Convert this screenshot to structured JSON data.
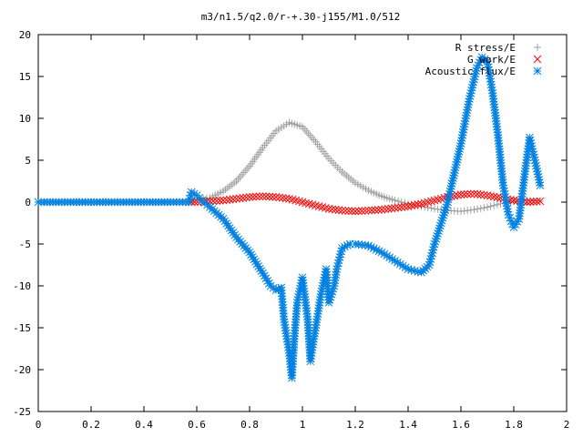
{
  "chart_data": {
    "type": "scatter",
    "title": "m3/n1.5/q2.0/r-+.30-j155/M1.0/512",
    "xlabel": "",
    "ylabel": "",
    "xlim": [
      0,
      2
    ],
    "ylim": [
      -25,
      20
    ],
    "x_ticks": [
      "0",
      "0.2",
      "0.4",
      "0.6",
      "0.8",
      "1",
      "1.2",
      "1.4",
      "1.6",
      "1.8",
      "2"
    ],
    "y_ticks": [
      "20",
      "15",
      "10",
      "5",
      "0",
      "-5",
      "-10",
      "-15",
      "-20",
      "-25"
    ],
    "grid": false,
    "legend_position": "top-right",
    "series": [
      {
        "name": "R stress/E",
        "marker": "+",
        "color": "#a0a0a0",
        "points": [
          [
            0.58,
            0.2
          ],
          [
            0.6,
            0.3
          ],
          [
            0.65,
            0.5
          ],
          [
            0.7,
            1.3
          ],
          [
            0.75,
            2.5
          ],
          [
            0.8,
            4.3
          ],
          [
            0.85,
            6.5
          ],
          [
            0.9,
            8.5
          ],
          [
            0.95,
            9.5
          ],
          [
            1.0,
            9.0
          ],
          [
            1.05,
            7.2
          ],
          [
            1.1,
            5.2
          ],
          [
            1.15,
            3.6
          ],
          [
            1.2,
            2.3
          ],
          [
            1.25,
            1.4
          ],
          [
            1.3,
            0.7
          ],
          [
            1.35,
            0.2
          ],
          [
            1.4,
            -0.2
          ],
          [
            1.45,
            -0.5
          ],
          [
            1.5,
            -0.8
          ],
          [
            1.55,
            -1.0
          ],
          [
            1.6,
            -1.1
          ],
          [
            1.65,
            -0.9
          ],
          [
            1.7,
            -0.6
          ],
          [
            1.75,
            -0.2
          ],
          [
            1.8,
            0.1
          ],
          [
            1.85,
            0.2
          ],
          [
            1.9,
            0.1
          ]
        ]
      },
      {
        "name": "G work/E",
        "marker": "x",
        "color": "#ff0000",
        "points": [
          [
            0.58,
            0.0
          ],
          [
            0.65,
            0.1
          ],
          [
            0.7,
            0.2
          ],
          [
            0.75,
            0.4
          ],
          [
            0.8,
            0.6
          ],
          [
            0.85,
            0.7
          ],
          [
            0.9,
            0.6
          ],
          [
            0.95,
            0.4
          ],
          [
            1.0,
            0.0
          ],
          [
            1.05,
            -0.4
          ],
          [
            1.1,
            -0.8
          ],
          [
            1.15,
            -1.0
          ],
          [
            1.2,
            -1.1
          ],
          [
            1.25,
            -1.0
          ],
          [
            1.3,
            -0.9
          ],
          [
            1.35,
            -0.7
          ],
          [
            1.4,
            -0.5
          ],
          [
            1.45,
            -0.2
          ],
          [
            1.5,
            0.2
          ],
          [
            1.55,
            0.6
          ],
          [
            1.6,
            0.9
          ],
          [
            1.65,
            1.0
          ],
          [
            1.7,
            0.8
          ],
          [
            1.75,
            0.5
          ],
          [
            1.8,
            0.2
          ],
          [
            1.85,
            0.0
          ],
          [
            1.9,
            0.1
          ]
        ]
      },
      {
        "name": "Acoustic flux/E",
        "marker": "*",
        "color": "#0080e0",
        "points": [
          [
            0.0,
            0.0
          ],
          [
            0.1,
            0.0
          ],
          [
            0.2,
            0.0
          ],
          [
            0.3,
            0.0
          ],
          [
            0.4,
            0.0
          ],
          [
            0.5,
            0.0
          ],
          [
            0.57,
            0.0
          ],
          [
            0.58,
            1.2
          ],
          [
            0.6,
            0.8
          ],
          [
            0.62,
            0.2
          ],
          [
            0.65,
            -0.6
          ],
          [
            0.7,
            -2.0
          ],
          [
            0.75,
            -4.2
          ],
          [
            0.8,
            -6.0
          ],
          [
            0.85,
            -8.5
          ],
          [
            0.88,
            -10.0
          ],
          [
            0.9,
            -10.5
          ],
          [
            0.92,
            -10.2
          ],
          [
            0.93,
            -14.0
          ],
          [
            0.95,
            -18.0
          ],
          [
            0.96,
            -21.0
          ],
          [
            0.97,
            -16.0
          ],
          [
            0.98,
            -12.0
          ],
          [
            1.0,
            -9.0
          ],
          [
            1.02,
            -14.0
          ],
          [
            1.03,
            -19.0
          ],
          [
            1.05,
            -15.0
          ],
          [
            1.07,
            -11.0
          ],
          [
            1.09,
            -8.0
          ],
          [
            1.1,
            -12.0
          ],
          [
            1.12,
            -10.0
          ],
          [
            1.13,
            -8.0
          ],
          [
            1.15,
            -5.5
          ],
          [
            1.18,
            -5.0
          ],
          [
            1.2,
            -5.0
          ],
          [
            1.25,
            -5.2
          ],
          [
            1.3,
            -6.0
          ],
          [
            1.35,
            -7.0
          ],
          [
            1.4,
            -8.0
          ],
          [
            1.45,
            -8.4
          ],
          [
            1.48,
            -7.5
          ],
          [
            1.5,
            -5.0
          ],
          [
            1.55,
            0.0
          ],
          [
            1.6,
            7.0
          ],
          [
            1.63,
            12.0
          ],
          [
            1.66,
            16.0
          ],
          [
            1.68,
            17.3
          ],
          [
            1.7,
            16.8
          ],
          [
            1.72,
            13.0
          ],
          [
            1.74,
            8.0
          ],
          [
            1.76,
            2.0
          ],
          [
            1.78,
            -1.5
          ],
          [
            1.8,
            -3.0
          ],
          [
            1.82,
            -2.0
          ],
          [
            1.84,
            3.0
          ],
          [
            1.86,
            7.7
          ],
          [
            1.88,
            5.0
          ],
          [
            1.9,
            2.0
          ]
        ]
      }
    ]
  }
}
